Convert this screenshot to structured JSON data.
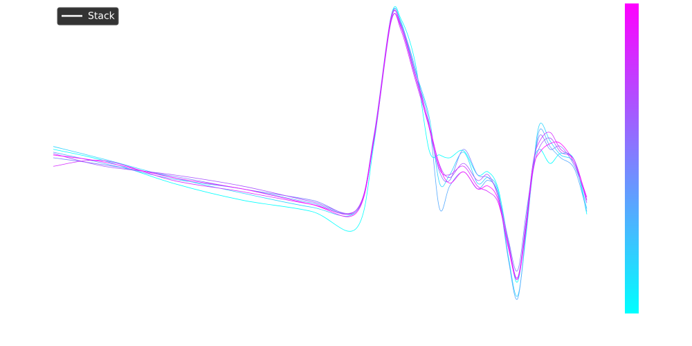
{
  "chart_data": {
    "type": "line",
    "legend": {
      "label": "Stack",
      "loc": "upper left"
    },
    "colormap": [
      "#00ffff",
      "#ff00ff"
    ],
    "colorbar": true,
    "grid": false,
    "xlim": [
      0,
      100
    ],
    "ylim": [
      -110,
      110
    ],
    "x": [
      0,
      9.5,
      22.4,
      35.4,
      48.4,
      56.8,
      60.1,
      63.3,
      65.2,
      67.8,
      70.4,
      72.4,
      74.3,
      76.9,
      79.5,
      81.5,
      83.4,
      85.3,
      87.0,
      88.6,
      89.9,
      91.2,
      93.1,
      95.1,
      97.7,
      100
    ],
    "series": [
      {
        "color": "#00ffff",
        "values": [
          6,
          -2,
          -18,
          -30,
          -38,
          -50,
          10,
          100,
          98,
          68,
          6,
          2,
          0,
          5,
          -12,
          -10,
          -22,
          -60,
          -88,
          -45,
          -5,
          6,
          -4,
          3,
          -2,
          -40
        ]
      },
      {
        "color": "#2ad4ff",
        "values": [
          8,
          -1,
          -14,
          -25,
          -35,
          -38,
          14,
          99,
          96,
          62,
          30,
          -18,
          -12,
          4,
          -18,
          -14,
          -24,
          -70,
          -98,
          -55,
          -8,
          24,
          12,
          2,
          -4,
          -36
        ]
      },
      {
        "color": "#55aaff",
        "values": [
          4,
          -4,
          -15,
          -22,
          -32,
          -37,
          16,
          100,
          95,
          60,
          26,
          -36,
          -20,
          -10,
          -22,
          -16,
          -26,
          -72,
          -100,
          -52,
          -10,
          20,
          8,
          0,
          -8,
          -38
        ]
      },
      {
        "color": "#7f80ff",
        "values": [
          0,
          -5,
          -13,
          -22,
          -30,
          -38,
          13,
          98,
          94,
          64,
          22,
          -10,
          -16,
          6,
          -12,
          -14,
          -26,
          -58,
          -80,
          -40,
          -8,
          16,
          6,
          8,
          -6,
          -30
        ]
      },
      {
        "color": "#aa55ff",
        "values": [
          3,
          -6,
          -12,
          -20,
          -31,
          -37,
          12,
          96,
          92,
          58,
          24,
          -5,
          -14,
          -4,
          -16,
          -12,
          -28,
          -60,
          -85,
          -45,
          -10,
          8,
          14,
          4,
          -2,
          -32
        ]
      },
      {
        "color": "#d42aff",
        "values": [
          -6,
          -2,
          -16,
          -24,
          -33,
          -37,
          15,
          97,
          90,
          56,
          22,
          -8,
          -12,
          -6,
          -20,
          -24,
          -32,
          -62,
          -86,
          -48,
          -4,
          12,
          18,
          6,
          -2,
          -30
        ]
      },
      {
        "color": "#ff00ff",
        "values": [
          2,
          -3,
          -14,
          -22,
          -33,
          -39,
          14,
          99,
          93,
          60,
          24,
          -6,
          -18,
          -10,
          -22,
          -20,
          -30,
          -64,
          -86,
          -50,
          -8,
          4,
          10,
          10,
          -4,
          -28
        ]
      }
    ]
  }
}
